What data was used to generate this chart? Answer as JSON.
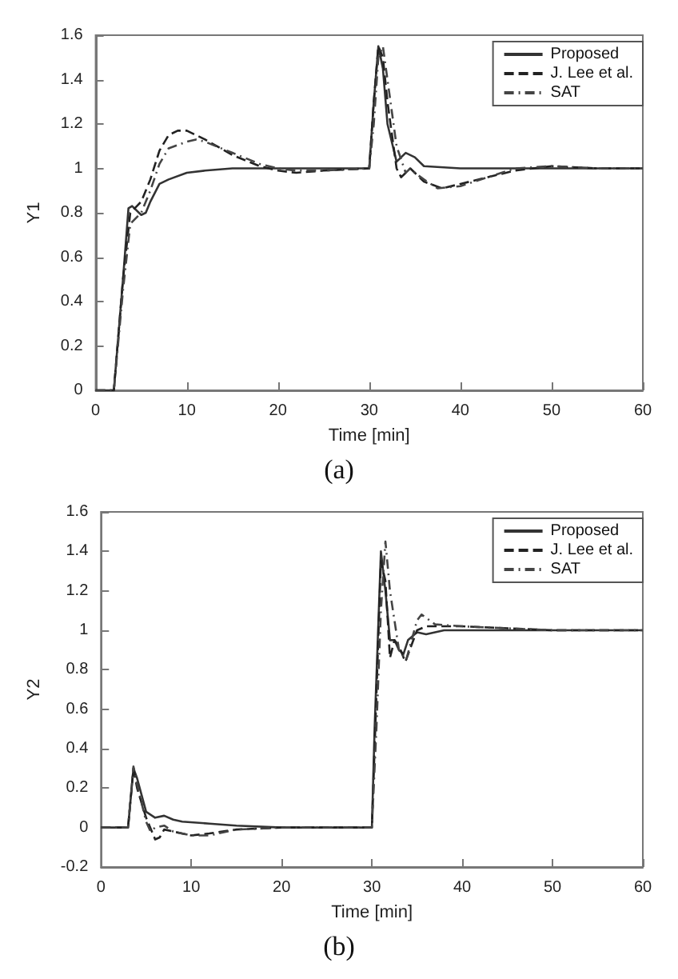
{
  "chart_data": [
    {
      "type": "line",
      "xlabel": "Time [min]",
      "ylabel": "Y1",
      "annotations": [
        "(a)"
      ],
      "xlim": [
        0,
        60
      ],
      "ylim": [
        0,
        1.6
      ],
      "xticks": [
        0,
        10,
        20,
        30,
        40,
        50,
        60
      ],
      "yticks": [
        0,
        0.2,
        0.4,
        0.6,
        0.8,
        1,
        1.2,
        1.4,
        1.6
      ],
      "grid": false,
      "legend": "top right",
      "series": [
        {
          "name": "Proposed",
          "color": "#333333",
          "line_style": "solid",
          "x": [
            0,
            2,
            3,
            3.6,
            4,
            5,
            5.5,
            6,
            7,
            8,
            10,
            12,
            15,
            20,
            30,
            30.5,
            31,
            31.5,
            32,
            33,
            34,
            35,
            36,
            40,
            45,
            60
          ],
          "values": [
            0,
            0,
            0.5,
            0.82,
            0.83,
            0.79,
            0.8,
            0.85,
            0.93,
            0.95,
            0.98,
            0.99,
            1,
            1,
            1,
            1.3,
            1.55,
            1.45,
            1.2,
            1.03,
            1.07,
            1.05,
            1.01,
            1,
            1,
            1
          ]
        },
        {
          "name": "J. Lee et al.",
          "color": "#222222",
          "line_style": "dashed",
          "x": [
            0,
            2,
            3,
            3.8,
            5,
            6,
            7,
            8,
            9,
            10,
            12,
            15,
            18,
            20,
            22,
            25,
            30,
            30.5,
            31,
            31.5,
            32,
            33,
            33.5,
            34.5,
            36,
            38,
            40,
            43,
            46,
            50,
            55,
            60
          ],
          "values": [
            0,
            0,
            0.5,
            0.8,
            0.85,
            0.95,
            1.08,
            1.15,
            1.17,
            1.17,
            1.13,
            1.06,
            1.01,
            0.99,
            0.98,
            0.99,
            1,
            1.3,
            1.55,
            1.5,
            1.3,
            1,
            0.96,
            1,
            0.94,
            0.91,
            0.93,
            0.96,
            0.99,
            1.01,
            1,
            1
          ]
        },
        {
          "name": "SAT",
          "color": "#444444",
          "line_style": "dotted",
          "x": [
            0,
            2,
            3,
            3.8,
            5,
            6,
            7,
            8,
            10,
            11,
            12,
            15,
            18,
            20,
            22,
            25,
            30,
            30.5,
            31,
            31.5,
            32,
            33,
            34,
            34.5,
            35,
            36,
            37.5,
            40,
            43,
            46,
            50,
            55,
            60
          ],
          "values": [
            0,
            0,
            0.45,
            0.75,
            0.8,
            0.9,
            1.02,
            1.09,
            1.12,
            1.13,
            1.12,
            1.07,
            1.02,
            1,
            0.99,
            0.99,
            1,
            1.2,
            1.5,
            1.55,
            1.4,
            1.1,
            0.98,
            1,
            0.98,
            0.95,
            0.91,
            0.92,
            0.96,
            1,
            1.01,
            1,
            1
          ]
        }
      ]
    },
    {
      "type": "line",
      "xlabel": "Time [min]",
      "ylabel": "Y2",
      "annotations": [
        "(b)"
      ],
      "xlim": [
        0,
        60
      ],
      "ylim": [
        -0.2,
        1.6
      ],
      "xticks": [
        0,
        10,
        20,
        30,
        40,
        50,
        60
      ],
      "yticks": [
        -0.2,
        0,
        0.2,
        0.4,
        0.6,
        0.8,
        1,
        1.2,
        1.4,
        1.6
      ],
      "grid": false,
      "legend": "top right",
      "series": [
        {
          "name": "Proposed",
          "color": "#333333",
          "line_style": "solid",
          "x": [
            0,
            3,
            3.6,
            4,
            5,
            6,
            7,
            8,
            9,
            12,
            15,
            20,
            30,
            30.3,
            31,
            31.5,
            32,
            32.5,
            33,
            33.5,
            34,
            35,
            36,
            38,
            60
          ],
          "values": [
            0,
            0,
            0.3,
            0.25,
            0.08,
            0.05,
            0.06,
            0.04,
            0.03,
            0.02,
            0.01,
            0,
            0,
            0.5,
            1.4,
            1.2,
            0.95,
            0.95,
            0.9,
            0.88,
            0.95,
            0.99,
            0.98,
            1,
            1
          ]
        },
        {
          "name": "J. Lee et al.",
          "color": "#222222",
          "line_style": "dashed",
          "x": [
            0,
            3,
            3.6,
            4,
            5,
            6,
            6.5,
            7,
            8,
            10,
            12,
            15,
            20,
            30,
            30.3,
            31,
            31.5,
            32,
            32.5,
            33,
            33.7,
            35,
            36,
            38,
            40,
            45,
            50,
            60
          ],
          "values": [
            0,
            0,
            0.3,
            0.2,
            0.05,
            -0.06,
            -0.05,
            -0.01,
            -0.02,
            -0.04,
            -0.03,
            -0.01,
            0,
            0,
            0.4,
            1.35,
            1.25,
            0.86,
            0.95,
            0.92,
            0.84,
            1,
            1.02,
            1.02,
            1.02,
            1.01,
            1,
            1
          ]
        },
        {
          "name": "SAT",
          "color": "#444444",
          "line_style": "dotted",
          "x": [
            0,
            3,
            3.6,
            4,
            5,
            5.5,
            6,
            7,
            8,
            10,
            12,
            15,
            20,
            30,
            30.5,
            31,
            31.5,
            32,
            33,
            33.8,
            35,
            35.5,
            37,
            40,
            45,
            50,
            60
          ],
          "values": [
            0,
            0,
            0.31,
            0.22,
            0.03,
            -0.02,
            0,
            0.01,
            -0.02,
            -0.04,
            -0.04,
            -0.01,
            0,
            0,
            0.5,
            1.1,
            1.45,
            1.2,
            0.9,
            0.85,
            1.05,
            1.08,
            1.03,
            1.02,
            1.01,
            1,
            1
          ]
        }
      ]
    }
  ]
}
